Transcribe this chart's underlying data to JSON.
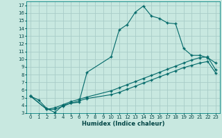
{
  "xlabel": "Humidex (Indice chaleur)",
  "bg_color": "#c8e8e0",
  "grid_color": "#a8ccc8",
  "line_color": "#006868",
  "xlim": [
    -0.5,
    23.5
  ],
  "ylim": [
    3,
    17.5
  ],
  "xticks": [
    0,
    1,
    2,
    3,
    4,
    5,
    6,
    7,
    8,
    9,
    10,
    11,
    12,
    13,
    14,
    15,
    16,
    17,
    18,
    19,
    20,
    21,
    22,
    23
  ],
  "yticks": [
    3,
    4,
    5,
    6,
    7,
    8,
    9,
    10,
    11,
    12,
    13,
    14,
    15,
    16,
    17
  ],
  "line1_x": [
    0,
    1,
    2,
    3,
    4,
    5,
    6,
    7,
    10,
    11,
    12,
    13,
    14,
    15,
    16,
    17,
    18,
    19,
    20,
    21,
    22,
    23
  ],
  "line1_y": [
    5.2,
    4.7,
    3.6,
    3.1,
    4.0,
    4.3,
    4.4,
    8.3,
    10.3,
    13.8,
    14.5,
    16.1,
    16.9,
    15.6,
    15.3,
    14.7,
    14.6,
    11.4,
    10.5,
    10.5,
    10.2,
    9.5
  ],
  "line2_x": [
    0,
    2,
    3,
    4,
    5,
    6,
    7,
    10,
    11,
    12,
    13,
    14,
    15,
    16,
    17,
    18,
    19,
    20,
    21,
    22,
    23
  ],
  "line2_y": [
    5.2,
    3.5,
    3.7,
    4.1,
    4.5,
    4.8,
    5.1,
    5.9,
    6.3,
    6.7,
    7.1,
    7.5,
    7.9,
    8.3,
    8.7,
    9.1,
    9.5,
    9.9,
    10.2,
    10.3,
    8.6
  ],
  "line3_x": [
    0,
    2,
    3,
    4,
    5,
    6,
    7,
    10,
    11,
    12,
    13,
    14,
    15,
    16,
    17,
    18,
    19,
    20,
    21,
    22,
    23
  ],
  "line3_y": [
    5.2,
    3.5,
    3.5,
    3.9,
    4.3,
    4.6,
    4.9,
    5.4,
    5.7,
    6.1,
    6.5,
    6.9,
    7.3,
    7.7,
    8.1,
    8.5,
    8.9,
    9.2,
    9.5,
    9.7,
    8.2
  ]
}
